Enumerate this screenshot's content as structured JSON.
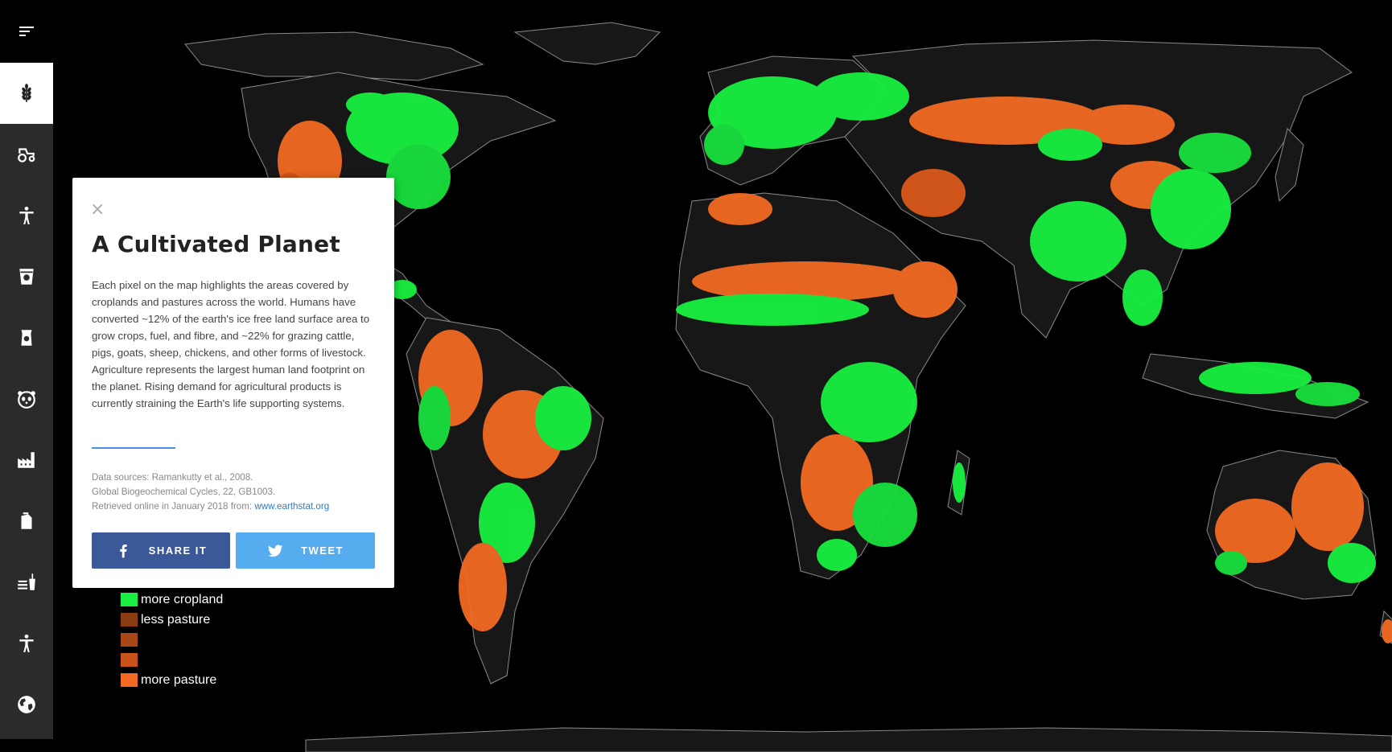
{
  "panel": {
    "close_label": "×",
    "title": "A Cultivated Planet",
    "description": "Each pixel on the map highlights the areas covered by croplands and pastures across the world. Humans have converted ~12% of the earth's ice free land surface area to grow crops, fuel, and fibre, and ~22% for grazing cattle, pigs, goats, sheep, chickens, and other forms of livestock. Agriculture represents the largest human land footprint on the planet. Rising demand for agricultural products is currently straining the Earth's life supporting systems.",
    "sources_line1": "Data sources: Ramankutty et al., 2008.",
    "sources_line2": "Global Biogeochemical Cycles, 22, GB1003.",
    "sources_line3": "Retrieved online in January 2018 from: ",
    "sources_link": "www.earthstat.org",
    "share_label": "SHARE IT",
    "tweet_label": "TWEET"
  },
  "legend": [
    {
      "label": "more cropland",
      "color": "#19f041"
    },
    {
      "label": "less pasture",
      "color": "#8a3d13"
    },
    {
      "label": "",
      "color": "#a84717"
    },
    {
      "label": "",
      "color": "#c9531b"
    },
    {
      "label": "more pasture",
      "color": "#f26a22"
    }
  ],
  "sidebar": {
    "items": [
      {
        "icon": "wheat-icon",
        "active": true
      },
      {
        "icon": "tractor-icon",
        "active": false
      },
      {
        "icon": "person-icon",
        "active": false
      },
      {
        "icon": "cup-icon",
        "active": false
      },
      {
        "icon": "package-icon",
        "active": false
      },
      {
        "icon": "panda-icon",
        "active": false
      },
      {
        "icon": "factory-icon",
        "active": false
      },
      {
        "icon": "bottle-icon",
        "active": false
      },
      {
        "icon": "fast-food-icon",
        "active": false
      },
      {
        "icon": "person-icon",
        "active": false
      },
      {
        "icon": "globe-icon",
        "active": false
      }
    ]
  },
  "colors": {
    "cropland": "#19f041",
    "pasture": "#f26a22",
    "land": "#161616",
    "ocean": "#000000"
  }
}
